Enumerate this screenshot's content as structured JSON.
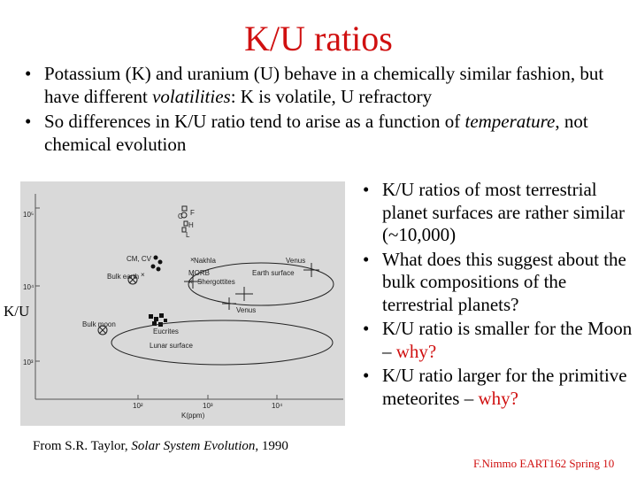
{
  "title": "K/U ratios",
  "bullets_top": [
    {
      "before": "Potassium (K) and uranium (U) behave in a chemically similar fashion, but have different ",
      "em": "volatilities",
      "after": ": K is volatile, U refractory"
    },
    {
      "before": "So differences in K/U ratio tend to arise as a function of ",
      "em": "temperature",
      "after": ", not chemical evolution"
    }
  ],
  "figure": {
    "y_axis_label": "K/U",
    "x_axis_label": "K(ppm)",
    "y_ticks": [
      "10⁵",
      "10⁴",
      "10³"
    ],
    "x_ticks": [
      "10²",
      "10³",
      "10⁴"
    ],
    "labels": {
      "cm_cv": "CM, CV",
      "c": "C",
      "f": "F",
      "h": "H",
      "l": "L",
      "nakhla": "Nakhla",
      "venus_top": "Venus",
      "bulk_earth": "Bulk earth",
      "morb": "MORB",
      "shergottites": "Shergottites",
      "earth_surface": "Earth surface",
      "venus_mid": "Venus",
      "bulk_moon": "Bulk moon",
      "eucrites": "Eucrites",
      "lunar_surface": "Lunar surface"
    }
  },
  "caption": {
    "before": "From S.R. Taylor, ",
    "em": "Solar System Evolution",
    "after": ", 1990"
  },
  "bullets_right": [
    {
      "text": "K/U ratios of most terrestrial planet surfaces are rather similar (~10,000)",
      "red": ""
    },
    {
      "text": "What does this suggest about the bulk compositions of the terrestrial planets?",
      "red": ""
    },
    {
      "text": "K/U ratio is smaller for the Moon – ",
      "red": "why?"
    },
    {
      "text": "K/U ratio larger for the primitive meteorites – ",
      "red": "why?"
    }
  ],
  "footer": "F.Nimmo EART162 Spring 10"
}
